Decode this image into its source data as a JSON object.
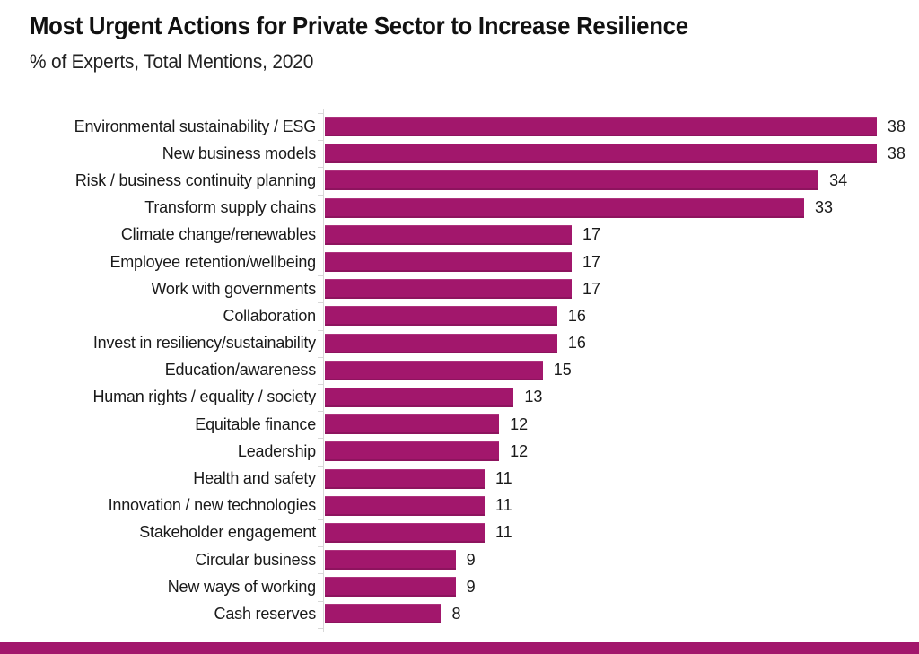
{
  "header": {
    "title": "Most Urgent Actions for Private Sector to Increase Resilience",
    "subtitle": "% of Experts, Total Mentions, 2020"
  },
  "chart_data": {
    "type": "bar",
    "orientation": "horizontal",
    "title": "Most Urgent Actions for Private Sector to Increase Resilience",
    "subtitle": "% of Experts, Total Mentions, 2020",
    "xlabel": "",
    "ylabel": "",
    "xlim": [
      0,
      40
    ],
    "grid": false,
    "legend": "none",
    "value_labels_shown": true,
    "categories": [
      "Environmental sustainability / ESG",
      "New business models",
      "Risk / business continuity planning",
      "Transform supply chains",
      "Climate change/renewables",
      "Employee retention/wellbeing",
      "Work with governments",
      "Collaboration",
      "Invest in resiliency/sustainability",
      "Education/awareness",
      "Human rights / equality / society",
      "Equitable finance",
      "Leadership",
      "Health and safety",
      "Innovation / new technologies",
      "Stakeholder engagement",
      "Circular business",
      "New ways of working",
      "Cash reserves"
    ],
    "values": [
      38,
      38,
      34,
      33,
      17,
      17,
      17,
      16,
      16,
      15,
      13,
      12,
      12,
      11,
      11,
      11,
      9,
      9,
      8
    ]
  },
  "colors": {
    "bar": "#A2176C",
    "accent_band": "#A2176C",
    "axis": "#D8D8D8",
    "text": "#1A1A1A"
  }
}
